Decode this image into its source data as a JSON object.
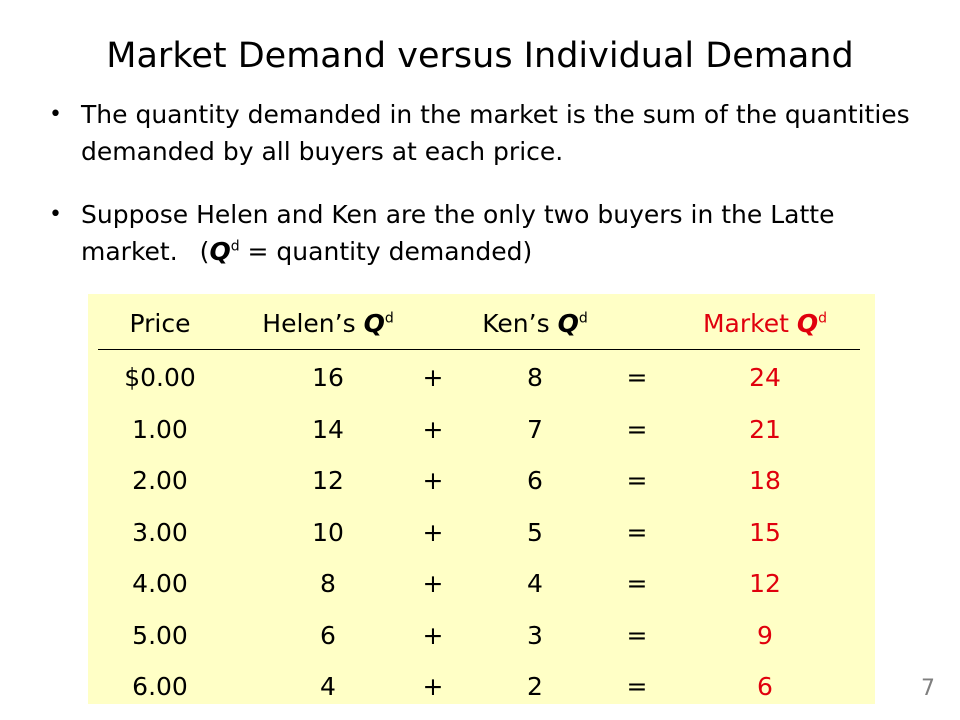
{
  "slide": {
    "title": "Market Demand versus Individual Demand",
    "bullets": [
      {
        "text": "The quantity demanded in the market is the sum of the quantities demanded by all buyers at each price."
      },
      {
        "text": "Suppose Helen and Ken are the only two buyers in the Latte market.",
        "note_open": "(",
        "note_symbol": "Q",
        "note_sup": "d",
        "note_rest": " = quantity demanded)"
      }
    ],
    "page_number": "7"
  },
  "colors": {
    "table_background": "#ffffc6",
    "market_column": "#e0000d"
  },
  "table": {
    "headers": {
      "price": "Price",
      "helen_prefix": "Helen’s ",
      "ken_prefix": "Ken’s ",
      "market_prefix": "Market ",
      "q_symbol": "Q",
      "q_sup": "d"
    },
    "rows": [
      {
        "price": "$0.00",
        "helen": "16",
        "plus": "+",
        "ken": "8",
        "eq": "=",
        "market": "24"
      },
      {
        "price": "1.00",
        "helen": "14",
        "plus": "+",
        "ken": "7",
        "eq": "=",
        "market": "21"
      },
      {
        "price": "2.00",
        "helen": "12",
        "plus": "+",
        "ken": "6",
        "eq": "=",
        "market": "18"
      },
      {
        "price": "3.00",
        "helen": "10",
        "plus": "+",
        "ken": "5",
        "eq": "=",
        "market": "15"
      },
      {
        "price": "4.00",
        "helen": "8",
        "plus": "+",
        "ken": "4",
        "eq": "=",
        "market": "12"
      },
      {
        "price": "5.00",
        "helen": "6",
        "plus": "+",
        "ken": "3",
        "eq": "=",
        "market": "9"
      },
      {
        "price": "6.00",
        "helen": "4",
        "plus": "+",
        "ken": "2",
        "eq": "=",
        "market": "6"
      }
    ]
  }
}
